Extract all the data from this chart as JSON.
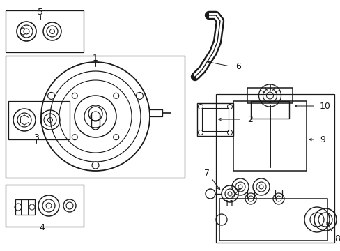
{
  "bg_color": "#ffffff",
  "lc": "#1a1a1a",
  "fig_w": 4.89,
  "fig_h": 3.6,
  "dpi": 100,
  "xlim": [
    0,
    489
  ],
  "ylim": [
    0,
    360
  ]
}
